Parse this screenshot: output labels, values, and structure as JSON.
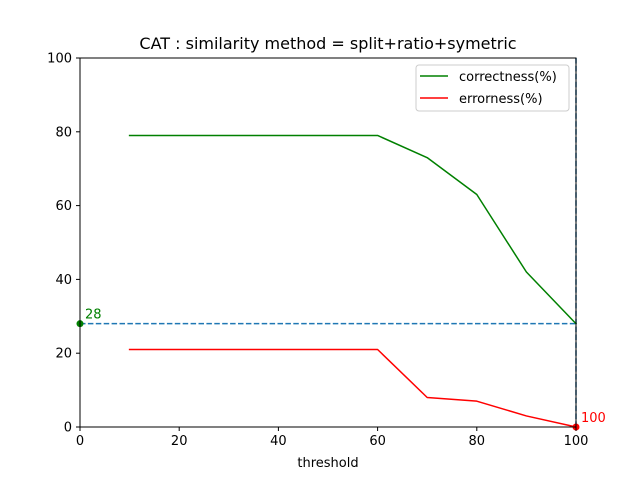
{
  "chart_data": {
    "type": "line",
    "title": "CAT : similarity method = split+ratio+symetric",
    "xlabel": "threshold",
    "ylabel": "",
    "xlim": [
      0,
      100
    ],
    "ylim": [
      0,
      100
    ],
    "xticks": [
      0,
      20,
      40,
      60,
      80,
      100
    ],
    "yticks": [
      0,
      20,
      40,
      60,
      80,
      100
    ],
    "grid": false,
    "legend_position": "top-right",
    "x": [
      10,
      20,
      30,
      40,
      50,
      60,
      70,
      80,
      90,
      100
    ],
    "series": [
      {
        "name": "correctness(%)",
        "color": "#008000",
        "values": [
          79,
          79,
          79,
          79,
          79,
          79,
          73,
          63,
          42,
          28
        ]
      },
      {
        "name": "errorness(%)",
        "color": "#ff0000",
        "values": [
          21,
          21,
          21,
          21,
          21,
          21,
          8,
          7,
          3,
          0
        ]
      }
    ],
    "reference_lines": [
      {
        "orientation": "horizontal",
        "value": 28,
        "style": "dashed",
        "color": "#1f77b4"
      },
      {
        "orientation": "vertical",
        "value": 100,
        "style": "dashed",
        "color": "#1f77b4"
      }
    ],
    "annotations": [
      {
        "text": "28",
        "x": 0,
        "y": 28,
        "color": "#008000",
        "marker": true
      },
      {
        "text": "100",
        "x": 100,
        "y": 0,
        "color": "#ff0000",
        "marker": true
      }
    ]
  }
}
